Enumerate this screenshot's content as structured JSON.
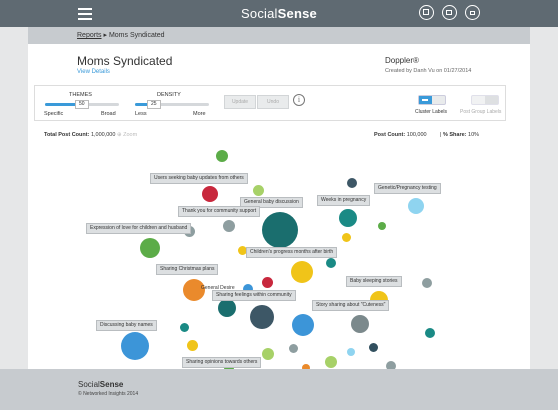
{
  "brand": {
    "prefix": "Social",
    "bold": "Sense"
  },
  "breadcrumb": {
    "root": "Reports",
    "separator": "▸",
    "current": "Moms Syndicated"
  },
  "project": {
    "title": "Moms Syndicated",
    "view_details": "View Details",
    "algorithm": "Doppler®",
    "created_by": "Created by Danh Vu on 01/27/2014"
  },
  "controls": {
    "themes": {
      "label": "THEMES",
      "value": "50",
      "left": "Specific",
      "right": "Broad",
      "fill_fraction": 0.5
    },
    "density": {
      "label": "DENSITY",
      "value": "25",
      "left": "Less",
      "right": "More",
      "fill_fraction": 0.25
    },
    "update_label": "Update",
    "undo_label": "Undo",
    "info_glyph": "i",
    "cluster_labels_toggle": "Cluster Labels",
    "post_group_labels_toggle": "Post Group Labels",
    "toggle_on_text": "ON",
    "toggle_off_text": "OFF"
  },
  "stats": {
    "total_label": "Total Post Count:",
    "total_value": "1,000,000",
    "zoom_label": "Zoom",
    "post_label": "Post Count:",
    "post_value": "100,000",
    "share_label": "% Share:",
    "share_value": "10%"
  },
  "colors": {
    "green": "#5cac48",
    "red": "#c8283d",
    "lightgreen": "#a7d168",
    "tealdark": "#1a6e6e",
    "teal": "#1a8a85",
    "blue": "#3c95d8",
    "lightblue": "#8fd4f0",
    "orange": "#ea8a2c",
    "yellow": "#f0c419",
    "gray": "#8e9ea0",
    "slate": "#3d5766",
    "darkslate": "#32505f",
    "gray2": "#7b898c"
  },
  "labels": [
    "Users seeking baby updates from others",
    "Genetic/Pregnancy testing",
    "General baby discussion",
    "Weeks in pregnancy",
    "Thank you for community support",
    "Expression of love for children and husband",
    "Children's progress months after birth",
    "Sharing Christmas plans",
    "Baby sleeping stories",
    "General Desire",
    "Sharing feelings within community",
    "Story sharing about \"Cuteness\"",
    "Discussing baby names",
    "Sharing opinions towards others"
  ],
  "footer": {
    "prefix": "Social",
    "bold": "Sense",
    "copyright": "© Networked Insights 2014"
  }
}
